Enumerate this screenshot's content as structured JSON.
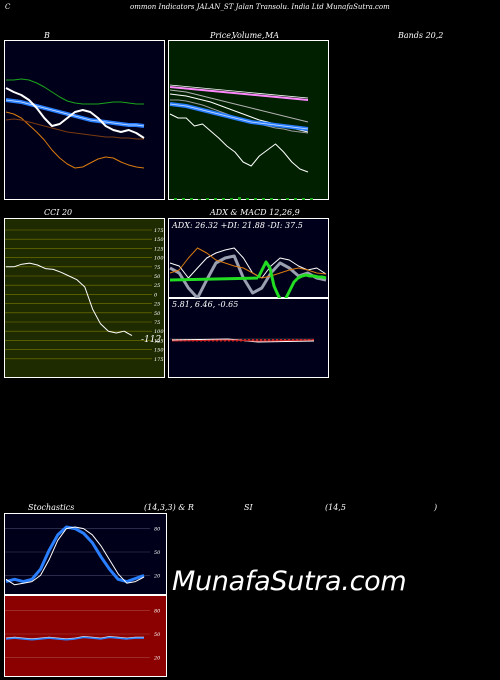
{
  "header": {
    "left": "C",
    "title": "ommon  Indicators JALAN_ST Jalan  Transolu. India  Ltd MunafaSutra.com"
  },
  "bb": {
    "title": "B"
  },
  "pm": {
    "title_a": "Price,",
    "title_b": "Volume,",
    "title_c": "MA"
  },
  "bands": {
    "title": "Bands 20,2"
  },
  "cci": {
    "title": "CCI 20",
    "value_label": "-112"
  },
  "adx": {
    "title": "ADX  & MACD 12,26,9",
    "stats": "ADX: 26.32  +DI: 21.88  -DI: 37.5"
  },
  "macd": {
    "stats": "5.81,  6.46,  -0.65"
  },
  "stoch": {
    "title_a": "Stochastics",
    "title_b": "(14,3,3) & R",
    "title_c": "SI",
    "title_d": "(14,5",
    "title_e": ")"
  },
  "brand": "MunafaSutra.com",
  "colors": {
    "panel_bg": "#00001a",
    "pm_bg": "#002000",
    "cci_bg": "#1e2a00",
    "rsi_bg": "#8b0000",
    "blue": "#2a7fff",
    "orange": "#d97a10",
    "green": "#1aa51a",
    "white": "#ffffff",
    "grey": "#aaaaaa"
  },
  "chart_data": [
    {
      "type": "line",
      "name": "bollinger",
      "series": [
        {
          "values": [
            62,
            60,
            61,
            63,
            65,
            70,
            76,
            83,
            89,
            93,
            95,
            96,
            97,
            97,
            97,
            97,
            98,
            99,
            100
          ]
        },
        {
          "values": [
            60,
            61,
            62,
            64,
            66,
            68,
            70,
            72,
            74,
            76,
            78,
            80,
            81,
            82,
            83,
            84,
            85,
            85,
            86
          ]
        },
        {
          "values": [
            80,
            79,
            80,
            82,
            84,
            86,
            88,
            90,
            92,
            93,
            94,
            95,
            96,
            97,
            97,
            98,
            98,
            99,
            99
          ]
        },
        {
          "values": [
            40,
            40,
            39,
            40,
            43,
            47,
            52,
            57,
            61,
            63,
            64,
            64,
            64,
            63,
            62,
            62,
            63,
            64,
            64
          ]
        },
        {
          "values": [
            72,
            74,
            78,
            85,
            92,
            100,
            110,
            118,
            124,
            128,
            127,
            123,
            119,
            117,
            118,
            122,
            125,
            127,
            128
          ]
        }
      ]
    },
    {
      "type": "line",
      "name": "price-ma",
      "series": [
        {
          "values": [
            60,
            60,
            61,
            62,
            62,
            63,
            64,
            66,
            67,
            69,
            70,
            71,
            73,
            74,
            75,
            76,
            77,
            78
          ]
        },
        {
          "values": [
            64,
            65,
            66,
            68,
            70,
            72,
            74,
            76,
            78,
            80,
            82,
            84,
            86,
            88,
            90,
            92,
            94,
            96
          ]
        },
        {
          "values": [
            68,
            69,
            70,
            72,
            74,
            76,
            79,
            82,
            85,
            88,
            91,
            94,
            96,
            98,
            100,
            102,
            104,
            106
          ]
        },
        {
          "values": [
            74,
            74,
            75,
            77,
            79,
            82,
            85,
            88,
            91,
            94,
            96,
            98,
            100,
            102,
            103,
            105,
            106,
            107
          ]
        },
        {
          "values": [
            78,
            79,
            80,
            82,
            84,
            86,
            88,
            90,
            92,
            94,
            96,
            97,
            98,
            99,
            100,
            101,
            102,
            103
          ]
        },
        {
          "values": [
            80,
            80,
            82,
            84,
            86,
            88,
            90,
            92,
            94,
            96,
            98,
            100,
            102,
            104,
            106,
            108,
            110,
            111
          ]
        },
        {
          "values": [
            88,
            92,
            92,
            100,
            98,
            105,
            112,
            120,
            126,
            136,
            140,
            130,
            124,
            118,
            126,
            136,
            143,
            146
          ]
        }
      ],
      "volume": [
        198,
        198,
        198,
        199,
        198,
        198,
        198,
        198,
        197,
        198,
        198,
        198,
        198,
        199,
        198,
        198,
        198,
        198
      ]
    },
    {
      "type": "line",
      "name": "cci",
      "levels": [
        175,
        150,
        125,
        100,
        75,
        50,
        25,
        0,
        -25,
        -50,
        -75,
        -100,
        -125,
        -150,
        -175
      ],
      "values": [
        75,
        75,
        82,
        85,
        80,
        70,
        68,
        60,
        50,
        40,
        20,
        -40,
        -80,
        -100,
        -105,
        -100,
        -112
      ]
    },
    {
      "type": "line",
      "name": "adx",
      "series": [
        {
          "values": [
            38,
            30,
            22,
            28,
            46,
            55,
            62,
            58,
            50,
            42,
            38,
            36,
            35,
            36,
            36,
            37,
            37,
            38
          ]
        },
        {
          "values": [
            55,
            52,
            40,
            30,
            35,
            42,
            45,
            48,
            50,
            55,
            60,
            58,
            55,
            52,
            50,
            52,
            55,
            56
          ]
        },
        {
          "values": [
            50,
            55,
            70,
            80,
            62,
            45,
            40,
            38,
            60,
            75,
            70,
            55,
            45,
            50,
            58,
            55,
            60,
            62
          ]
        },
        {
          "values": [
            45,
            48,
            60,
            50,
            40,
            35,
            32,
            30,
            40,
            55,
            60,
            48,
            40,
            42,
            48,
            52,
            50,
            56
          ]
        }
      ]
    },
    {
      "type": "line",
      "name": "macd",
      "stats": [
        5.81,
        6.46,
        -0.65
      ]
    },
    {
      "type": "line",
      "name": "stochastics",
      "levels": [
        80,
        50,
        20
      ],
      "series": [
        {
          "values": [
            15,
            8,
            10,
            12,
            20,
            40,
            65,
            80,
            82,
            80,
            72,
            58,
            40,
            22,
            10,
            12,
            18
          ]
        },
        {
          "values": [
            12,
            15,
            12,
            15,
            28,
            52,
            72,
            82,
            80,
            74,
            62,
            44,
            28,
            15,
            12,
            16,
            20
          ]
        }
      ]
    },
    {
      "type": "line",
      "name": "rsi",
      "levels": [
        80,
        50,
        20
      ],
      "values": [
        44,
        45,
        44,
        43,
        44,
        45,
        44,
        43,
        44,
        46,
        45,
        44,
        46,
        45,
        44,
        45,
        45
      ]
    }
  ]
}
